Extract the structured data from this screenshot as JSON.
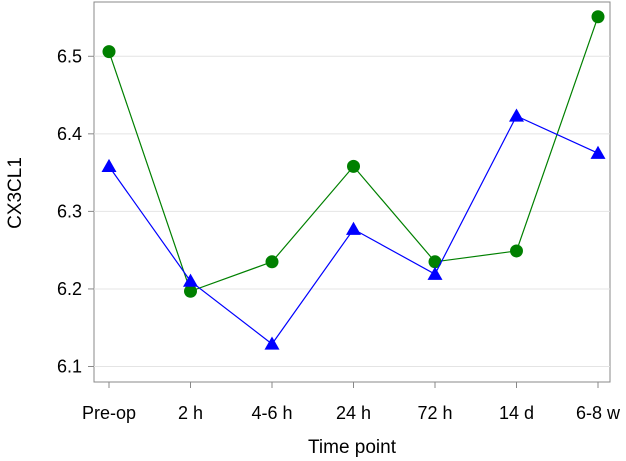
{
  "chart_data": {
    "type": "line",
    "xlabel": "Time point",
    "ylabel": "CX3CL1",
    "categories": [
      "Pre-op",
      "2 h",
      "4-6 h",
      "24 h",
      "72 h",
      "14 d",
      "6-8 w"
    ],
    "ylim": [
      6.08,
      6.57
    ],
    "yticks": [
      6.1,
      6.2,
      6.3,
      6.4,
      6.5
    ],
    "ytick_labels": [
      "6.1",
      "6.2",
      "6.3",
      "6.4",
      "6.5"
    ],
    "grid": "horizontal",
    "series": [
      {
        "marker": "circle",
        "color": "#008000",
        "values": [
          6.506,
          6.197,
          6.235,
          6.358,
          6.235,
          6.249,
          6.551
        ]
      },
      {
        "marker": "triangle",
        "color": "#0000ff",
        "values": [
          6.358,
          6.21,
          6.129,
          6.277,
          6.219,
          6.423,
          6.375
        ]
      }
    ]
  }
}
